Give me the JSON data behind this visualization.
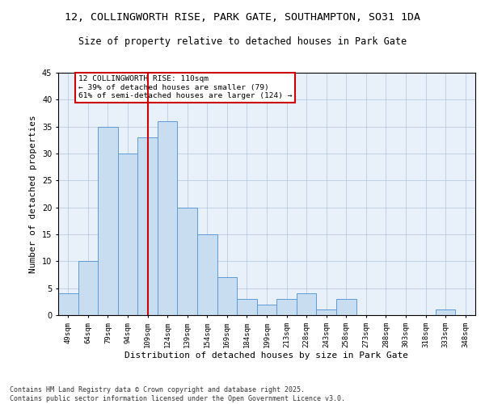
{
  "title1": "12, COLLINGWORTH RISE, PARK GATE, SOUTHAMPTON, SO31 1DA",
  "title2": "Size of property relative to detached houses in Park Gate",
  "xlabel": "Distribution of detached houses by size in Park Gate",
  "ylabel": "Number of detached properties",
  "categories": [
    "49sqm",
    "64sqm",
    "79sqm",
    "94sqm",
    "109sqm",
    "124sqm",
    "139sqm",
    "154sqm",
    "169sqm",
    "184sqm",
    "199sqm",
    "213sqm",
    "228sqm",
    "243sqm",
    "258sqm",
    "273sqm",
    "288sqm",
    "303sqm",
    "318sqm",
    "333sqm",
    "348sqm"
  ],
  "values": [
    4,
    10,
    35,
    30,
    33,
    36,
    20,
    15,
    7,
    3,
    2,
    3,
    4,
    1,
    3,
    0,
    0,
    0,
    0,
    1,
    0
  ],
  "bar_color": "#c9ddf0",
  "bar_edge_color": "#5b9bd5",
  "vline_x_idx": 4,
  "vline_color": "#cc0000",
  "annotation_text": "12 COLLINGWORTH RISE: 110sqm\n← 39% of detached houses are smaller (79)\n61% of semi-detached houses are larger (124) →",
  "annotation_box_color": "#ffffff",
  "annotation_box_edge": "#cc0000",
  "ylim": [
    0,
    45
  ],
  "yticks": [
    0,
    5,
    10,
    15,
    20,
    25,
    30,
    35,
    40,
    45
  ],
  "grid_color": "#b0c4de",
  "bg_color": "#e8f0fa",
  "footnote": "Contains HM Land Registry data © Crown copyright and database right 2025.\nContains public sector information licensed under the Open Government Licence v3.0.",
  "title_fontsize": 9.5,
  "subtitle_fontsize": 8.5,
  "tick_fontsize": 6.5,
  "ylabel_fontsize": 8,
  "xlabel_fontsize": 8,
  "annotation_fontsize": 6.8,
  "footnote_fontsize": 6.0
}
